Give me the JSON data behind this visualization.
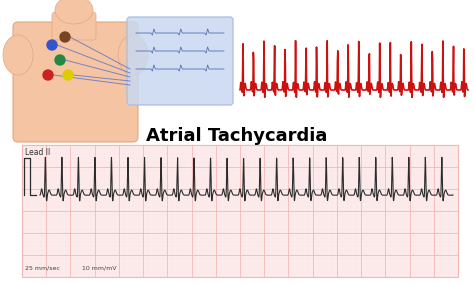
{
  "title": "Atrial Tachycardia",
  "title_fontsize": 13,
  "title_fontweight": "bold",
  "bg_color": "#ffffff",
  "ecg_grid_color_major": "#f5b8b8",
  "ecg_grid_color_minor": "#fce8e8",
  "ecg_line_color": "#2c2c2c",
  "ecg_label": "Lead II",
  "ecg_bottom_left": "25 mm/sec",
  "ecg_bottom_right": "10 mm/mV",
  "top_ecg_color": "#cc1111",
  "body_color": "#f5c5a3",
  "monitor_bg": "#c8d8f0",
  "lead_colors": [
    "#cc2222",
    "#ddcc00",
    "#228844",
    "#3355cc",
    "#7a4422"
  ]
}
